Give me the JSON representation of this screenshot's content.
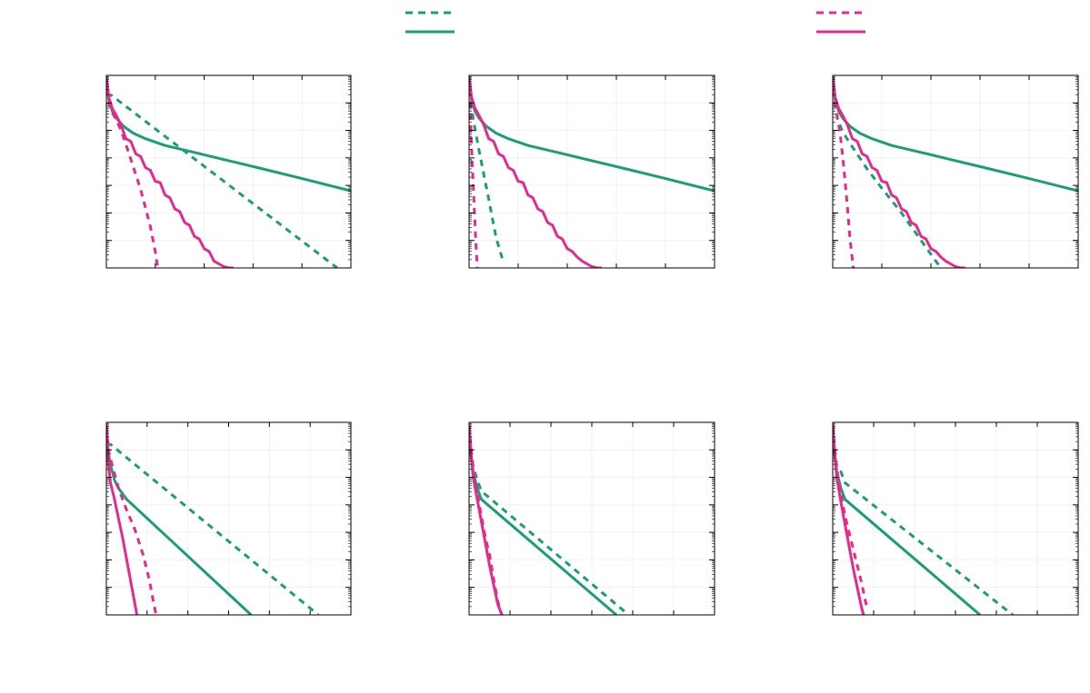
{
  "colors": {
    "green": "#1b9e77",
    "magenta": "#e7298a",
    "frame": "#000000",
    "grid": "#ececec"
  },
  "legend": {
    "placement": "top",
    "entries": [
      {
        "color": "#1b9e77",
        "style": "dashed",
        "label": ""
      },
      {
        "color": "#1b9e77",
        "style": "solid",
        "label": ""
      },
      {
        "color": "#e7298a",
        "style": "dashed",
        "label": ""
      },
      {
        "color": "#e7298a",
        "style": "solid",
        "label": ""
      }
    ]
  },
  "chart_data": [
    {
      "type": "line",
      "title": "",
      "xlabel": "",
      "ylabel": "",
      "xlim": [
        0,
        5
      ],
      "ylim": [
        -7,
        0
      ],
      "yscale": "log",
      "grid": true,
      "series": [
        {
          "color": "#1b9e77",
          "style": "dashed",
          "x": [
            0,
            0.1,
            4.72
          ],
          "y": [
            -0.72,
            -0.72,
            -7
          ]
        },
        {
          "color": "#1b9e77",
          "style": "solid",
          "x": [
            0,
            0.05,
            0.12,
            0.2,
            0.35,
            0.55,
            0.8,
            1.2,
            1.8,
            2.5,
            3.2,
            4,
            5
          ],
          "y": [
            -0.05,
            -0.9,
            -1.3,
            -1.55,
            -1.85,
            -2.1,
            -2.3,
            -2.55,
            -2.8,
            -3.1,
            -3.4,
            -3.75,
            -4.2
          ]
        },
        {
          "color": "#e7298a",
          "style": "dashed",
          "x": [
            0,
            0.05,
            0.1,
            0.2,
            0.3,
            0.4,
            0.5,
            0.6,
            0.7,
            0.8,
            0.9,
            1.0,
            1.05
          ],
          "y": [
            -0.1,
            -0.9,
            -1.3,
            -1.6,
            -2.0,
            -2.5,
            -3.05,
            -3.6,
            -4.15,
            -4.8,
            -5.5,
            -6.4,
            -7
          ]
        },
        {
          "color": "#e7298a",
          "style": "solid",
          "x": [
            0,
            0.05,
            0.12,
            0.2,
            0.3,
            0.4,
            0.5,
            0.6,
            0.7,
            0.8,
            0.9,
            1.0,
            1.1,
            1.2,
            1.3,
            1.4,
            1.5,
            1.6,
            1.7,
            1.8,
            1.9,
            2.0,
            2.1,
            2.2,
            2.3,
            2.4,
            2.5,
            2.6
          ],
          "y": [
            -0.05,
            -0.8,
            -1.2,
            -1.45,
            -1.8,
            -2.3,
            -2.4,
            -2.85,
            -2.95,
            -3.35,
            -3.45,
            -3.85,
            -3.9,
            -4.35,
            -4.45,
            -4.85,
            -4.95,
            -5.35,
            -5.45,
            -5.85,
            -5.95,
            -6.3,
            -6.4,
            -6.75,
            -6.85,
            -6.95,
            -7,
            -7
          ]
        }
      ]
    },
    {
      "type": "line",
      "title": "",
      "xlabel": "",
      "ylabel": "",
      "xlim": [
        0,
        5
      ],
      "ylim": [
        -7,
        0
      ],
      "yscale": "log",
      "grid": true,
      "series": [
        {
          "color": "#1b9e77",
          "style": "dashed",
          "x": [
            0,
            0.05,
            0.1,
            0.2,
            0.4,
            0.55,
            0.7
          ],
          "y": [
            -0.1,
            -1.2,
            -1.75,
            -2.7,
            -4.5,
            -5.9,
            -6.8
          ]
        },
        {
          "color": "#1b9e77",
          "style": "solid",
          "x": [
            0,
            0.05,
            0.12,
            0.2,
            0.35,
            0.55,
            0.8,
            1.2,
            1.8,
            2.5,
            3.2,
            4,
            5
          ],
          "y": [
            -0.05,
            -0.9,
            -1.3,
            -1.55,
            -1.85,
            -2.1,
            -2.3,
            -2.55,
            -2.8,
            -3.1,
            -3.4,
            -3.75,
            -4.2
          ]
        },
        {
          "color": "#e7298a",
          "style": "dashed",
          "x": [
            0,
            0.03,
            0.06,
            0.1,
            0.14,
            0.17
          ],
          "y": [
            -0.1,
            -1.5,
            -3.0,
            -4.6,
            -6.2,
            -7
          ]
        },
        {
          "color": "#e7298a",
          "style": "solid",
          "x": [
            0,
            0.05,
            0.12,
            0.2,
            0.3,
            0.4,
            0.5,
            0.6,
            0.7,
            0.8,
            0.9,
            1.0,
            1.1,
            1.2,
            1.3,
            1.4,
            1.5,
            1.6,
            1.7,
            1.8,
            1.9,
            2.0,
            2.1,
            2.2,
            2.3,
            2.4,
            2.5,
            2.6,
            2.7
          ],
          "y": [
            -0.05,
            -0.8,
            -1.2,
            -1.45,
            -1.8,
            -2.3,
            -2.4,
            -2.85,
            -2.95,
            -3.35,
            -3.45,
            -3.85,
            -3.9,
            -4.35,
            -4.45,
            -4.85,
            -4.95,
            -5.35,
            -5.45,
            -5.85,
            -5.95,
            -6.3,
            -6.4,
            -6.6,
            -6.75,
            -6.85,
            -6.95,
            -7,
            -7
          ]
        }
      ]
    },
    {
      "type": "line",
      "title": "",
      "xlabel": "",
      "ylabel": "",
      "xlim": [
        0,
        5
      ],
      "ylim": [
        -7,
        0
      ],
      "yscale": "log",
      "grid": true,
      "series": [
        {
          "color": "#1b9e77",
          "style": "dashed",
          "x": [
            0,
            0.05,
            0.1,
            0.2,
            0.4,
            0.7,
            1.0,
            1.4,
            1.8,
            2.2
          ],
          "y": [
            -0.1,
            -1.0,
            -1.6,
            -2.05,
            -2.6,
            -3.4,
            -4.1,
            -5.0,
            -6.0,
            -7
          ]
        },
        {
          "color": "#1b9e77",
          "style": "solid",
          "x": [
            0,
            0.05,
            0.12,
            0.2,
            0.35,
            0.55,
            0.8,
            1.2,
            1.8,
            2.5,
            3.2,
            4,
            5
          ],
          "y": [
            -0.05,
            -0.9,
            -1.3,
            -1.55,
            -1.85,
            -2.1,
            -2.3,
            -2.55,
            -2.8,
            -3.1,
            -3.4,
            -3.75,
            -4.2
          ]
        },
        {
          "color": "#e7298a",
          "style": "dashed",
          "x": [
            0,
            0.05,
            0.1,
            0.15,
            0.2,
            0.25,
            0.3,
            0.35,
            0.4,
            0.42
          ],
          "y": [
            -0.1,
            -1.0,
            -1.6,
            -2.1,
            -2.9,
            -3.8,
            -4.8,
            -5.9,
            -6.7,
            -7
          ]
        },
        {
          "color": "#e7298a",
          "style": "solid",
          "x": [
            0,
            0.05,
            0.12,
            0.2,
            0.3,
            0.4,
            0.5,
            0.6,
            0.7,
            0.8,
            0.9,
            1.0,
            1.1,
            1.2,
            1.3,
            1.4,
            1.5,
            1.6,
            1.7,
            1.8,
            1.9,
            2.0,
            2.1,
            2.2,
            2.3,
            2.4,
            2.5,
            2.6,
            2.7
          ],
          "y": [
            -0.05,
            -0.8,
            -1.2,
            -1.45,
            -1.8,
            -2.3,
            -2.4,
            -2.85,
            -2.95,
            -3.35,
            -3.45,
            -3.85,
            -3.9,
            -4.35,
            -4.45,
            -4.85,
            -4.95,
            -5.35,
            -5.45,
            -5.85,
            -5.95,
            -6.3,
            -6.4,
            -6.6,
            -6.75,
            -6.85,
            -6.95,
            -7,
            -7
          ]
        }
      ]
    },
    {
      "type": "line",
      "title": "",
      "xlabel": "",
      "ylabel": "",
      "xlim": [
        0,
        6
      ],
      "ylim": [
        -7,
        0
      ],
      "yscale": "log",
      "grid": true,
      "series": [
        {
          "color": "#1b9e77",
          "style": "dashed",
          "x": [
            0,
            0.1,
            5.2
          ],
          "y": [
            -0.8,
            -0.8,
            -7
          ]
        },
        {
          "color": "#1b9e77",
          "style": "solid",
          "x": [
            0,
            0.05,
            0.1,
            0.2,
            0.3,
            0.5,
            3.55
          ],
          "y": [
            -0.1,
            -1.1,
            -1.55,
            -2.1,
            -2.4,
            -2.8,
            -7
          ]
        },
        {
          "color": "#e7298a",
          "style": "dashed",
          "x": [
            0,
            0.05,
            0.15,
            0.3,
            0.5,
            0.7,
            0.9,
            1.05,
            1.15,
            1.22
          ],
          "y": [
            -0.1,
            -1.0,
            -1.6,
            -2.4,
            -3.2,
            -3.9,
            -4.8,
            -5.7,
            -6.5,
            -7
          ]
        },
        {
          "color": "#e7298a",
          "style": "solid",
          "x": [
            0,
            0.05,
            0.1,
            0.2,
            0.3,
            0.4,
            0.5,
            0.6,
            0.7,
            0.75
          ],
          "y": [
            -0.1,
            -1.5,
            -2.2,
            -2.8,
            -3.5,
            -4.2,
            -5.0,
            -5.8,
            -6.6,
            -7
          ]
        }
      ]
    },
    {
      "type": "line",
      "title": "",
      "xlabel": "",
      "ylabel": "",
      "xlim": [
        0,
        6
      ],
      "ylim": [
        -7,
        0
      ],
      "yscale": "log",
      "grid": true,
      "series": [
        {
          "color": "#1b9e77",
          "style": "dashed",
          "x": [
            0,
            0.05,
            0.1,
            0.2,
            0.3,
            3.9
          ],
          "y": [
            -0.1,
            -1.0,
            -1.6,
            -2.1,
            -2.5,
            -7
          ]
        },
        {
          "color": "#1b9e77",
          "style": "solid",
          "x": [
            0,
            0.05,
            0.1,
            0.2,
            0.3,
            3.6
          ],
          "y": [
            -0.1,
            -1.2,
            -1.8,
            -2.4,
            -2.8,
            -7
          ]
        },
        {
          "color": "#e7298a",
          "style": "dashed",
          "x": [
            0,
            0.05,
            0.1,
            0.2,
            0.3,
            0.4,
            0.5,
            0.6,
            0.7,
            0.8
          ],
          "y": [
            -0.1,
            -1.0,
            -1.7,
            -2.6,
            -3.4,
            -4.2,
            -4.8,
            -5.7,
            -6.5,
            -7
          ]
        },
        {
          "color": "#e7298a",
          "style": "solid",
          "x": [
            0,
            0.05,
            0.1,
            0.2,
            0.3,
            0.4,
            0.5,
            0.6,
            0.7,
            0.8
          ],
          "y": [
            -0.1,
            -1.2,
            -2.0,
            -2.8,
            -3.6,
            -4.4,
            -5.2,
            -5.9,
            -6.6,
            -7
          ]
        }
      ]
    },
    {
      "type": "line",
      "title": "",
      "xlabel": "",
      "ylabel": "",
      "xlim": [
        0,
        6
      ],
      "ylim": [
        -7,
        0
      ],
      "yscale": "log",
      "grid": true,
      "series": [
        {
          "color": "#1b9e77",
          "style": "dashed",
          "x": [
            0,
            0.05,
            0.1,
            0.2,
            0.3,
            4.4
          ],
          "y": [
            -0.1,
            -1.0,
            -1.6,
            -1.8,
            -2.2,
            -7
          ]
        },
        {
          "color": "#1b9e77",
          "style": "solid",
          "x": [
            0,
            0.05,
            0.1,
            0.2,
            0.3,
            3.6
          ],
          "y": [
            -0.1,
            -1.2,
            -1.8,
            -2.4,
            -2.8,
            -7
          ]
        },
        {
          "color": "#e7298a",
          "style": "dashed",
          "x": [
            0,
            0.05,
            0.1,
            0.2,
            0.3,
            0.4,
            0.5,
            0.6,
            0.7,
            0.8,
            0.85
          ],
          "y": [
            -0.1,
            -1.0,
            -1.7,
            -2.6,
            -3.4,
            -4.0,
            -4.6,
            -5.2,
            -5.8,
            -6.5,
            -6.8
          ]
        },
        {
          "color": "#e7298a",
          "style": "solid",
          "x": [
            0,
            0.05,
            0.1,
            0.2,
            0.3,
            0.4,
            0.5,
            0.6,
            0.7,
            0.75
          ],
          "y": [
            -0.1,
            -1.2,
            -2.0,
            -2.9,
            -3.7,
            -4.5,
            -5.3,
            -6.0,
            -6.7,
            -7
          ]
        }
      ]
    }
  ]
}
